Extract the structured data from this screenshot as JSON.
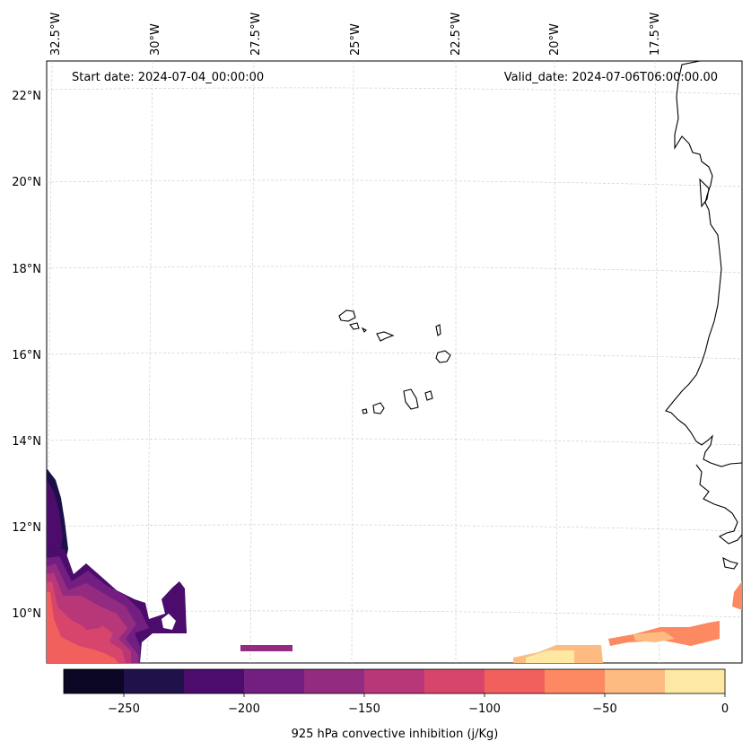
{
  "map": {
    "start_label": "Start date: 2024-07-04_00:00:00",
    "valid_label": "Valid_date: 2024-07-06T06:00:00.00",
    "lon_labels": [
      "32.5°W",
      "30°W",
      "27.5°W",
      "25°W",
      "22.5°W",
      "20°W",
      "17.5°W"
    ],
    "lat_labels": [
      "22°N",
      "20°N",
      "18°N",
      "16°N",
      "14°N",
      "12°N",
      "10°N"
    ],
    "region": "Cape Verde Islands and West African coast"
  },
  "colorbar": {
    "label": "925 hPa convective inhibition (j/Kg)",
    "tick_labels": [
      "−250",
      "−200",
      "−150",
      "−100",
      "−50",
      "0"
    ],
    "levels": [
      -275,
      -250,
      -225,
      -200,
      -175,
      -150,
      -125,
      -100,
      -75,
      -50,
      -25,
      0
    ],
    "colors": [
      "#0b0724",
      "#20114b",
      "#4b0c6b",
      "#721f81",
      "#932b80",
      "#b73779",
      "#d8456c",
      "#f1605d",
      "#fc8961",
      "#febb81",
      "#fde9a3"
    ]
  }
}
